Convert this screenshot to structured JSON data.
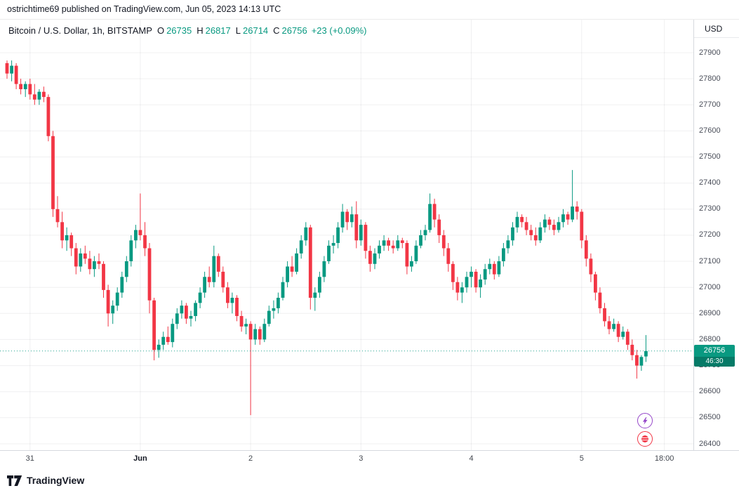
{
  "attribution": "ostrichtime69 published on TradingView.com, Jun 05, 2023 14:13 UTC",
  "header": {
    "symbol": "Bitcoin / U.S. Dollar, 1h, BITSTAMP",
    "ohlc": {
      "o_label": "O",
      "o": "26735",
      "h_label": "H",
      "h": "26817",
      "l_label": "L",
      "l": "26714",
      "c_label": "C",
      "c": "26756"
    },
    "change": "+23 (+0.09%)",
    "currency": "USD"
  },
  "price_axis": {
    "labels": [
      "27900",
      "27800",
      "27700",
      "27600",
      "27500",
      "27400",
      "27300",
      "27200",
      "27100",
      "27000",
      "26900",
      "26800",
      "26700",
      "26600",
      "26500",
      "26400"
    ],
    "last_price": "26756",
    "countdown": "46:30"
  },
  "time_axis": {
    "labels": [
      {
        "text": "31",
        "index": 5,
        "bold": false
      },
      {
        "text": "Jun",
        "index": 29,
        "bold": true
      },
      {
        "text": "2",
        "index": 53,
        "bold": false
      },
      {
        "text": "3",
        "index": 77,
        "bold": false
      },
      {
        "text": "4",
        "index": 101,
        "bold": false
      },
      {
        "text": "5",
        "index": 125,
        "bold": false
      },
      {
        "text": "18:00",
        "index": 143,
        "bold": false
      }
    ]
  },
  "footer": {
    "logo_text": "TradingView"
  },
  "colors": {
    "up": "#089981",
    "down": "#F23645",
    "badge_bg": "#089981",
    "accent_purple": "#9546c9",
    "accent_red": "#f23645"
  },
  "chart_data": {
    "type": "candlestick",
    "title": "Bitcoin / U.S. Dollar",
    "symbol": "BTCUSD",
    "exchange": "BITSTAMP",
    "interval": "1h",
    "last_close": 26756,
    "y_axis": {
      "min": 26400,
      "max": 27900,
      "step": 100,
      "unit": "USD"
    },
    "x_labels": [
      "31",
      "Jun",
      "2",
      "3",
      "4",
      "5",
      "18:00"
    ],
    "candles": [
      [
        27860,
        27870,
        27800,
        27820
      ],
      [
        27820,
        27870,
        27790,
        27850
      ],
      [
        27850,
        27860,
        27760,
        27780
      ],
      [
        27780,
        27800,
        27740,
        27760
      ],
      [
        27760,
        27790,
        27730,
        27780
      ],
      [
        27780,
        27800,
        27720,
        27740
      ],
      [
        27740,
        27780,
        27700,
        27720
      ],
      [
        27720,
        27760,
        27700,
        27750
      ],
      [
        27750,
        27770,
        27710,
        27730
      ],
      [
        27730,
        27740,
        27560,
        27580
      ],
      [
        27580,
        27600,
        27270,
        27300
      ],
      [
        27300,
        27350,
        27230,
        27250
      ],
      [
        27250,
        27290,
        27150,
        27180
      ],
      [
        27180,
        27230,
        27140,
        27200
      ],
      [
        27200,
        27210,
        27120,
        27150
      ],
      [
        27150,
        27170,
        27050,
        27080
      ],
      [
        27080,
        27150,
        27060,
        27130
      ],
      [
        27130,
        27160,
        27090,
        27110
      ],
      [
        27110,
        27140,
        27050,
        27070
      ],
      [
        27070,
        27120,
        27040,
        27100
      ],
      [
        27100,
        27130,
        27070,
        27090
      ],
      [
        27090,
        27100,
        26960,
        26990
      ],
      [
        26990,
        27010,
        26850,
        26900
      ],
      [
        26900,
        26950,
        26860,
        26930
      ],
      [
        26930,
        27000,
        26910,
        26980
      ],
      [
        26980,
        27060,
        26960,
        27040
      ],
      [
        27040,
        27120,
        27020,
        27100
      ],
      [
        27100,
        27200,
        27080,
        27180
      ],
      [
        27180,
        27240,
        27150,
        27220
      ],
      [
        27220,
        27360,
        27180,
        27200
      ],
      [
        27200,
        27250,
        27120,
        27150
      ],
      [
        27150,
        27170,
        26900,
        26950
      ],
      [
        26950,
        26960,
        26720,
        26760
      ],
      [
        26760,
        26800,
        26730,
        26780
      ],
      [
        26780,
        26830,
        26760,
        26810
      ],
      [
        26810,
        26850,
        26780,
        26790
      ],
      [
        26790,
        26880,
        26770,
        26860
      ],
      [
        26860,
        26920,
        26840,
        26900
      ],
      [
        26900,
        26950,
        26880,
        26930
      ],
      [
        26930,
        26940,
        26860,
        26880
      ],
      [
        26880,
        26910,
        26850,
        26890
      ],
      [
        26890,
        26950,
        26870,
        26940
      ],
      [
        26940,
        27000,
        26920,
        26980
      ],
      [
        26980,
        27060,
        26960,
        27040
      ],
      [
        27040,
        27080,
        27000,
        27020
      ],
      [
        27020,
        27160,
        27000,
        27120
      ],
      [
        27120,
        27130,
        27040,
        27060
      ],
      [
        27060,
        27080,
        26980,
        27000
      ],
      [
        27000,
        27020,
        26920,
        26940
      ],
      [
        26940,
        26980,
        26900,
        26960
      ],
      [
        26960,
        26970,
        26870,
        26890
      ],
      [
        26890,
        26910,
        26830,
        26850
      ],
      [
        26850,
        26880,
        26820,
        26860
      ],
      [
        26860,
        26870,
        26510,
        26800
      ],
      [
        26800,
        26860,
        26780,
        26840
      ],
      [
        26840,
        26850,
        26780,
        26800
      ],
      [
        26800,
        26880,
        26790,
        26860
      ],
      [
        26860,
        26930,
        26850,
        26910
      ],
      [
        26910,
        26950,
        26880,
        26920
      ],
      [
        26920,
        26980,
        26900,
        26960
      ],
      [
        26960,
        27040,
        26950,
        27020
      ],
      [
        27020,
        27100,
        27000,
        27080
      ],
      [
        27080,
        27120,
        27040,
        27060
      ],
      [
        27060,
        27150,
        27050,
        27130
      ],
      [
        27130,
        27200,
        27110,
        27180
      ],
      [
        27180,
        27250,
        27160,
        27230
      ],
      [
        27230,
        27240,
        26915,
        26960
      ],
      [
        26960,
        27000,
        26910,
        26980
      ],
      [
        26980,
        27060,
        26960,
        27040
      ],
      [
        27040,
        27120,
        27020,
        27100
      ],
      [
        27100,
        27180,
        27090,
        27160
      ],
      [
        27160,
        27200,
        27130,
        27170
      ],
      [
        27170,
        27250,
        27150,
        27230
      ],
      [
        27230,
        27320,
        27210,
        27290
      ],
      [
        27290,
        27300,
        27220,
        27250
      ],
      [
        27250,
        27310,
        27230,
        27280
      ],
      [
        27280,
        27330,
        27150,
        27180
      ],
      [
        27180,
        27260,
        27160,
        27240
      ],
      [
        27240,
        27250,
        27110,
        27140
      ],
      [
        27140,
        27160,
        27060,
        27090
      ],
      [
        27090,
        27150,
        27070,
        27130
      ],
      [
        27130,
        27180,
        27110,
        27160
      ],
      [
        27160,
        27200,
        27140,
        27180
      ],
      [
        27180,
        27190,
        27140,
        27160
      ],
      [
        27160,
        27180,
        27130,
        27150
      ],
      [
        27150,
        27200,
        27140,
        27180
      ],
      [
        27180,
        27190,
        27150,
        27170
      ],
      [
        27170,
        27180,
        27050,
        27080
      ],
      [
        27080,
        27120,
        27060,
        27100
      ],
      [
        27100,
        27180,
        27090,
        27160
      ],
      [
        27160,
        27220,
        27150,
        27200
      ],
      [
        27200,
        27240,
        27180,
        27220
      ],
      [
        27220,
        27360,
        27210,
        27320
      ],
      [
        27320,
        27340,
        27230,
        27260
      ],
      [
        27260,
        27280,
        27170,
        27200
      ],
      [
        27200,
        27220,
        27120,
        27150
      ],
      [
        27150,
        27170,
        27060,
        27090
      ],
      [
        27090,
        27100,
        26990,
        27020
      ],
      [
        27020,
        27040,
        26950,
        26980
      ],
      [
        26980,
        27020,
        26940,
        27000
      ],
      [
        27000,
        27060,
        26980,
        27040
      ],
      [
        27040,
        27080,
        27000,
        27060
      ],
      [
        27060,
        27070,
        26980,
        27000
      ],
      [
        27000,
        27050,
        26960,
        27030
      ],
      [
        27030,
        27090,
        27010,
        27070
      ],
      [
        27070,
        27110,
        27050,
        27090
      ],
      [
        27090,
        27100,
        27030,
        27050
      ],
      [
        27050,
        27120,
        27040,
        27100
      ],
      [
        27100,
        27170,
        27080,
        27150
      ],
      [
        27150,
        27200,
        27130,
        27180
      ],
      [
        27180,
        27250,
        27160,
        27230
      ],
      [
        27230,
        27290,
        27210,
        27270
      ],
      [
        27270,
        27280,
        27230,
        27250
      ],
      [
        27250,
        27270,
        27200,
        27220
      ],
      [
        27220,
        27240,
        27180,
        27200
      ],
      [
        27200,
        27230,
        27160,
        27180
      ],
      [
        27180,
        27250,
        27170,
        27230
      ],
      [
        27230,
        27280,
        27210,
        27260
      ],
      [
        27260,
        27270,
        27220,
        27240
      ],
      [
        27240,
        27260,
        27200,
        27220
      ],
      [
        27220,
        27270,
        27210,
        27250
      ],
      [
        27250,
        27300,
        27230,
        27280
      ],
      [
        27280,
        27290,
        27240,
        27260
      ],
      [
        27260,
        27450,
        27250,
        27310
      ],
      [
        27310,
        27330,
        27260,
        27290
      ],
      [
        27290,
        27300,
        27150,
        27180
      ],
      [
        27180,
        27200,
        27080,
        27110
      ],
      [
        27110,
        27130,
        27020,
        27050
      ],
      [
        27050,
        27060,
        26950,
        26980
      ],
      [
        26980,
        27000,
        26900,
        26920
      ],
      [
        26920,
        26940,
        26850,
        26870
      ],
      [
        26870,
        26890,
        26820,
        26840
      ],
      [
        26840,
        26880,
        26830,
        26860
      ],
      [
        26860,
        26870,
        26790,
        26810
      ],
      [
        26810,
        26850,
        26800,
        26830
      ],
      [
        26830,
        26840,
        26760,
        26780
      ],
      [
        26780,
        26800,
        26720,
        26740
      ],
      [
        26740,
        26760,
        26650,
        26700
      ],
      [
        26700,
        26740,
        26680,
        26733
      ],
      [
        26735,
        26817,
        26714,
        26756
      ]
    ]
  }
}
